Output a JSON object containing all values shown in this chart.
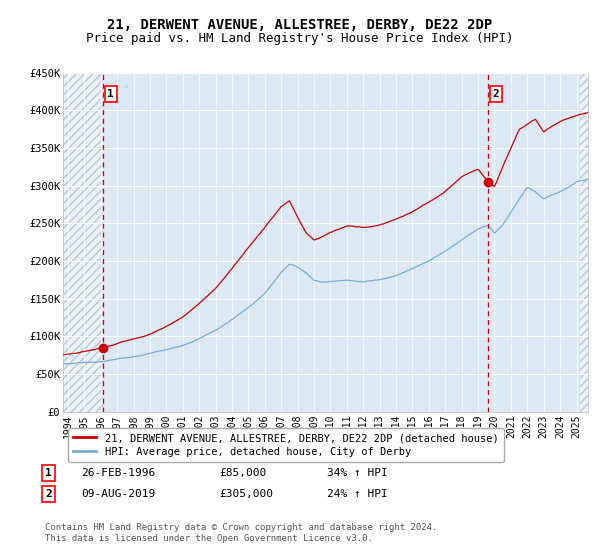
{
  "title": "21, DERWENT AVENUE, ALLESTREE, DERBY, DE22 2DP",
  "subtitle": "Price paid vs. HM Land Registry's House Price Index (HPI)",
  "title_fontsize": 10,
  "subtitle_fontsize": 9,
  "background_color": "#dce9f5",
  "hatch_color": "#b8c8dc",
  "red_line_color": "#cc0000",
  "blue_line_color": "#7aaadd",
  "marker_color": "#cc0000",
  "vline_color": "#cc0000",
  "sale1_year": 1996.15,
  "sale1_price": 85000,
  "sale2_year": 2019.62,
  "sale2_price": 305000,
  "sale1_date": "26-FEB-1996",
  "sale1_hpi_pct": "34%",
  "sale2_date": "09-AUG-2019",
  "sale2_hpi_pct": "24%",
  "ylim": [
    0,
    450000
  ],
  "xlim_start": 1993.7,
  "xlim_end": 2025.7,
  "ytick_values": [
    0,
    50000,
    100000,
    150000,
    200000,
    250000,
    300000,
    350000,
    400000,
    450000
  ],
  "ytick_labels": [
    "£0",
    "£50K",
    "£100K",
    "£150K",
    "£200K",
    "£250K",
    "£300K",
    "£350K",
    "£400K",
    "£450K"
  ],
  "xtick_years": [
    1994,
    1995,
    1996,
    1997,
    1998,
    1999,
    2000,
    2001,
    2002,
    2003,
    2004,
    2005,
    2006,
    2007,
    2008,
    2009,
    2010,
    2011,
    2012,
    2013,
    2014,
    2015,
    2016,
    2017,
    2018,
    2019,
    2020,
    2021,
    2022,
    2023,
    2024,
    2025
  ],
  "legend_red_label": "21, DERWENT AVENUE, ALLESTREE, DERBY, DE22 2DP (detached house)",
  "legend_blue_label": "HPI: Average price, detached house, City of Derby",
  "footer_text": "Contains HM Land Registry data © Crown copyright and database right 2024.\nThis data is licensed under the Open Government Licence v3.0."
}
